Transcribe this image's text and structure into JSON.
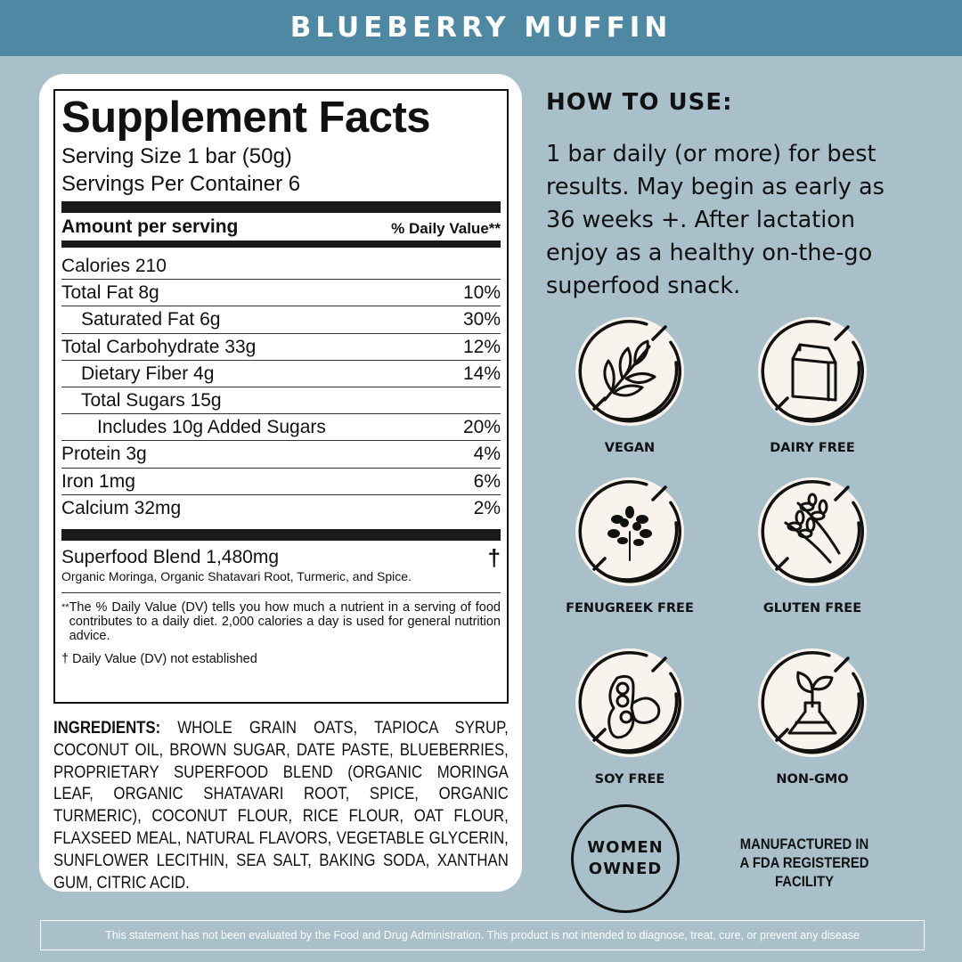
{
  "header": {
    "title": "BLUEBERRY MUFFIN"
  },
  "facts": {
    "title": "Supplement Facts",
    "serving_size": "Serving Size 1 bar (50g)",
    "servings_per_container": "Servings Per Container 6",
    "amount_per_serving": "Amount per serving",
    "daily_value_header": "% Daily Value**",
    "rows": [
      {
        "name": "Calories 210",
        "dv": ""
      },
      {
        "name": "Total Fat 8g",
        "dv": "10%"
      },
      {
        "name": "Saturated Fat 6g",
        "dv": "30%"
      },
      {
        "name": "Total Carbohydrate 33g",
        "dv": "12%"
      },
      {
        "name": "Dietary Fiber 4g",
        "dv": "14%"
      },
      {
        "name": "Total Sugars 15g",
        "dv": ""
      },
      {
        "name": "Includes 10g Added Sugars",
        "dv": "20%"
      },
      {
        "name": "Protein 3g",
        "dv": "4%"
      },
      {
        "name": "Iron 1mg",
        "dv": "6%"
      },
      {
        "name": "Calcium 32mg",
        "dv": "2%"
      }
    ],
    "blend_name": "Superfood Blend 1,480mg",
    "blend_mark": "†",
    "blend_sub": "Organic Moringa, Organic Shatavari Root, Turmeric, and Spice.",
    "dv_mark": "**",
    "dv_note": "The % Daily Value (DV) tells you how much a nutrient in a serving of food contributes to a daily diet. 2,000 calories a day is used for general nutrition advice.",
    "dagger_note": "† Daily Value (DV) not established"
  },
  "ingredients": {
    "label": "INGREDIENTS:",
    "text": " WHOLE GRAIN OATS, TAPIOCA SYRUP, COCONUT OIL, BROWN SUGAR, DATE PASTE, BLUEBERRIES, PROPRIETARY SUPERFOOD BLEND (ORGANIC MORINGA LEAF, ORGANIC SHATAVARI ROOT, SPICE, ORGANIC TURMERIC), COCONUT FLOUR, RICE FLOUR, OAT FLOUR, FLAXSEED MEAL, NATURAL FLAVORS, VEGETABLE GLYCERIN, SUNFLOWER LECITHIN, SEA SALT, BAKING SODA, XANTHAN GUM, CITRIC ACID."
  },
  "how_to_use": {
    "title": "HOW TO USE:",
    "text": "1 bar daily (or more) for best results. May begin as early as 36 weeks +. After lactation enjoy as a healthy on-the-go superfood snack."
  },
  "badges": [
    {
      "label": "VEGAN",
      "icon": "leaf-icon"
    },
    {
      "label": "DAIRY FREE",
      "icon": "milk-carton-icon"
    },
    {
      "label": "FENUGREEK FREE",
      "icon": "fenugreek-icon"
    },
    {
      "label": "GLUTEN FREE",
      "icon": "wheat-icon"
    },
    {
      "label": "SOY FREE",
      "icon": "soybean-icon"
    },
    {
      "label": "NON-GMO",
      "icon": "flask-sprout-icon"
    }
  ],
  "women_owned": {
    "line1": "WOMEN",
    "line2": "OWNED"
  },
  "fda": {
    "line1": "MANUFACTURED IN",
    "line2": "A FDA REGISTERED",
    "line3": "FACILITY"
  },
  "disclaimer": "This statement has not been evaluated by the Food and Drug Administration. This product is not intended to diagnose, treat, cure, or prevent any disease",
  "colors": {
    "header": "#4f88a3",
    "background": "#a9c0cb",
    "badge_fill": "#f8f3ec"
  }
}
